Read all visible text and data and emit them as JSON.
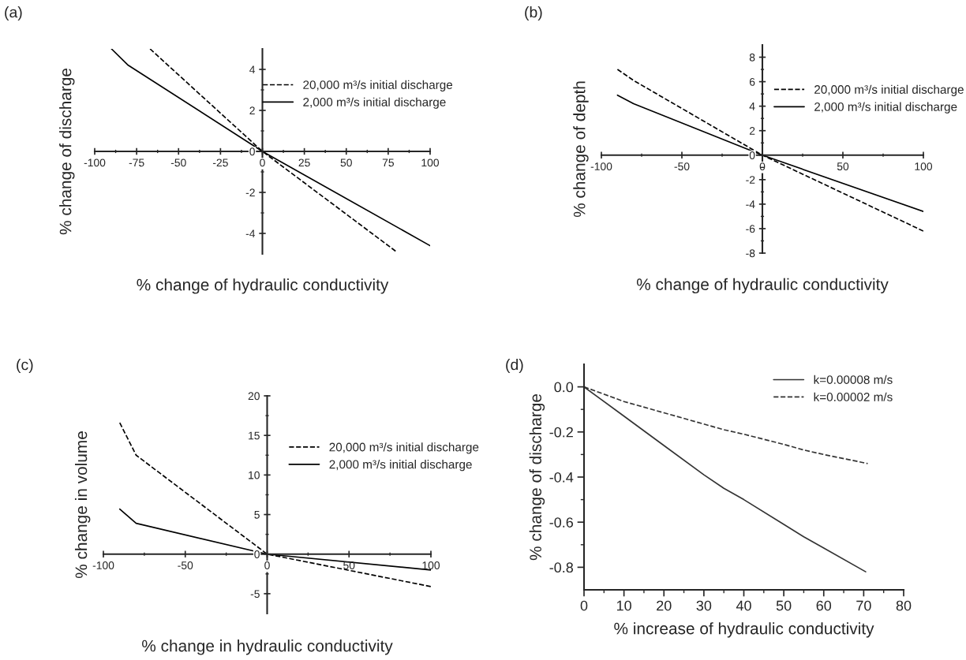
{
  "chart_data": [
    {
      "type": "line",
      "title": "(a)",
      "xlabel": "% change of hydraulic conductivity",
      "ylabel": "% change of discharge",
      "xlim": [
        -100,
        100
      ],
      "ylim": [
        -5,
        5
      ],
      "xticks": [
        -100,
        -75,
        -50,
        -25,
        0,
        25,
        50,
        75,
        100
      ],
      "yticks": [
        -4,
        -2,
        0,
        2,
        4
      ],
      "grid": false,
      "legend": "top right",
      "series": [
        {
          "name": "20,000 m³/s initial discharge",
          "color": "#000000",
          "line_style": "dashed",
          "x": [
            -67,
            0,
            80
          ],
          "values": [
            5,
            0,
            -4.9
          ]
        },
        {
          "name": "2,000 m³/s initial discharge",
          "color": "#000000",
          "line_style": "solid",
          "x": [
            -90,
            -80,
            0,
            100
          ],
          "values": [
            5,
            4.2,
            0,
            -4.6
          ]
        }
      ]
    },
    {
      "type": "line",
      "title": "(b)",
      "xlabel": "% change of hydraulic conductivity",
      "ylabel": "% change of depth",
      "xlim": [
        -100,
        100
      ],
      "ylim": [
        -8,
        9
      ],
      "xticks": [
        -100,
        -50,
        0,
        50,
        100
      ],
      "yticks": [
        -8,
        -6,
        -4,
        -2,
        0,
        2,
        4,
        6,
        8
      ],
      "grid": false,
      "legend": "top right",
      "series": [
        {
          "name": "20,000 m³/s initial discharge",
          "color": "#000000",
          "line_style": "dashed",
          "x": [
            -90,
            -80,
            0,
            100
          ],
          "values": [
            7,
            6.1,
            0,
            -6.2
          ]
        },
        {
          "name": "2,000 m³/s initial discharge",
          "color": "#000000",
          "line_style": "solid",
          "x": [
            -90,
            -80,
            0,
            100
          ],
          "values": [
            4.9,
            4.2,
            0,
            -4.6
          ]
        }
      ]
    },
    {
      "type": "line",
      "title": "(c)",
      "xlabel": "% change in hydraulic conductivity",
      "ylabel": "% change in volume",
      "xlim": [
        -100,
        100
      ],
      "ylim": [
        -7.5,
        20
      ],
      "xticks": [
        -100,
        -50,
        0,
        50,
        100
      ],
      "yticks": [
        -5,
        0,
        5,
        10,
        15,
        20
      ],
      "grid": false,
      "legend": "right",
      "series": [
        {
          "name": "20,000 m³/s initial discharge",
          "color": "#000000",
          "line_style": "dashed",
          "x": [
            -90,
            -80,
            0,
            100
          ],
          "values": [
            16.6,
            12.5,
            0,
            -4.1
          ]
        },
        {
          "name": "2,000 m³/s initial discharge",
          "color": "#000000",
          "line_style": "solid",
          "x": [
            -90,
            -80,
            0,
            100
          ],
          "values": [
            5.7,
            3.9,
            0,
            -2.0
          ]
        }
      ]
    },
    {
      "type": "line",
      "title": "(d)",
      "xlabel": "% increase of hydraulic conductivity",
      "ylabel": "% change of discharge",
      "xlim": [
        0,
        80
      ],
      "ylim": [
        -0.9,
        0.1
      ],
      "xticks": [
        0,
        10,
        20,
        30,
        40,
        50,
        60,
        70,
        80
      ],
      "yticks": [
        {
          "value": -0.8,
          "label": "-0.8"
        },
        {
          "value": -0.6,
          "label": "-0.6"
        },
        {
          "value": -0.4,
          "label": "-0.4"
        },
        {
          "value": -0.2,
          "label": "-0.2"
        },
        {
          "value": 0,
          "label": "0.0"
        }
      ],
      "grid": false,
      "legend": "top right",
      "series": [
        {
          "name": "k=0.00008 m/s",
          "color": "#333333",
          "line_style": "solid",
          "x": [
            0,
            10,
            20,
            30,
            35,
            40,
            50,
            55,
            60,
            70.5
          ],
          "values": [
            0,
            -0.13,
            -0.26,
            -0.39,
            -0.45,
            -0.5,
            -0.61,
            -0.665,
            -0.715,
            -0.82
          ]
        },
        {
          "name": "k=0.00002 m/s",
          "color": "#333333",
          "line_style": "dashed",
          "x": [
            0,
            10,
            20,
            30,
            35,
            40,
            50,
            55,
            60,
            71
          ],
          "values": [
            0,
            -0.065,
            -0.115,
            -0.165,
            -0.19,
            -0.21,
            -0.255,
            -0.28,
            -0.3,
            -0.34
          ]
        }
      ]
    }
  ]
}
